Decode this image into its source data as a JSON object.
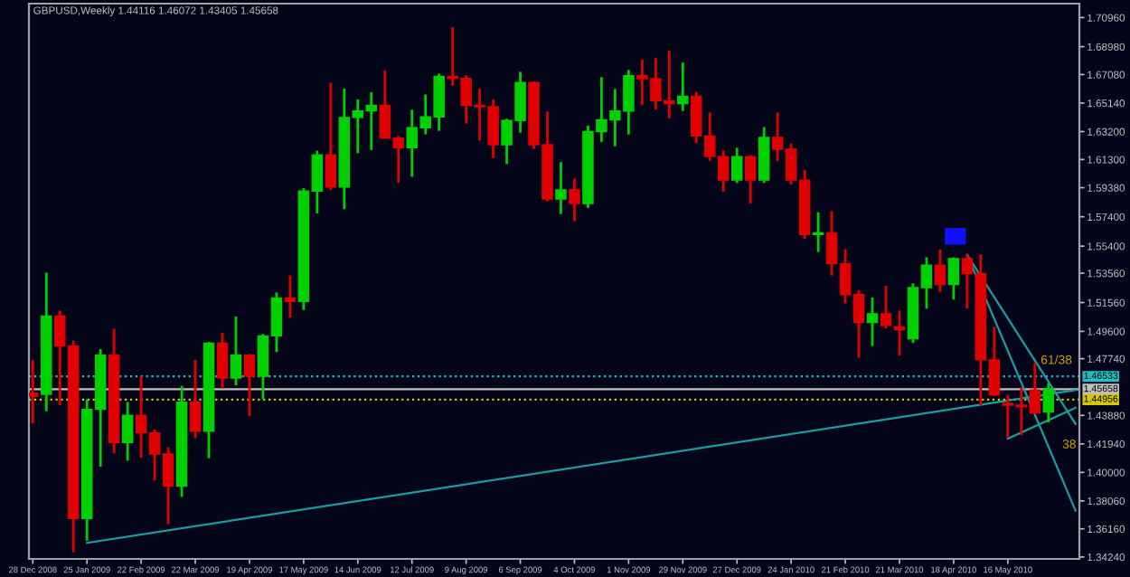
{
  "chart_data": {
    "type": "candlestick",
    "title": "GBPUSD,Weekly 1.44116 1.46072 1.43405 1.45658",
    "x": [
      "2008-12-28",
      "2009-01-04",
      "2009-01-11",
      "2009-01-18",
      "2009-01-25",
      "2009-02-01",
      "2009-02-08",
      "2009-02-15",
      "2009-02-22",
      "2009-03-01",
      "2009-03-08",
      "2009-03-15",
      "2009-03-22",
      "2009-03-29",
      "2009-04-05",
      "2009-04-12",
      "2009-04-19",
      "2009-04-26",
      "2009-05-03",
      "2009-05-10",
      "2009-05-17",
      "2009-05-24",
      "2009-05-31",
      "2009-06-07",
      "2009-06-14",
      "2009-06-21",
      "2009-06-28",
      "2009-07-05",
      "2009-07-12",
      "2009-07-19",
      "2009-07-26",
      "2009-08-02",
      "2009-08-09",
      "2009-08-16",
      "2009-08-23",
      "2009-08-30",
      "2009-09-06",
      "2009-09-13",
      "2009-09-20",
      "2009-09-27",
      "2009-10-04",
      "2009-10-11",
      "2009-10-18",
      "2009-10-25",
      "2009-11-01",
      "2009-11-08",
      "2009-11-15",
      "2009-11-22",
      "2009-11-29",
      "2009-12-06",
      "2009-12-13",
      "2009-12-20",
      "2009-12-27",
      "2010-01-03",
      "2010-01-10",
      "2010-01-17",
      "2010-01-24",
      "2010-01-31",
      "2010-02-07",
      "2010-02-14",
      "2010-02-21",
      "2010-02-28",
      "2010-03-07",
      "2010-03-14",
      "2010-03-21",
      "2010-03-28",
      "2010-04-04",
      "2010-04-11",
      "2010-04-18",
      "2010-04-25",
      "2010-05-02",
      "2010-05-09",
      "2010-05-16",
      "2010-05-23",
      "2010-05-30",
      "2010-06-06"
    ],
    "ohlc": [
      [
        1.454,
        1.4765,
        1.4334,
        1.4519
      ],
      [
        1.4531,
        1.536,
        1.4416,
        1.5065
      ],
      [
        1.5065,
        1.5102,
        1.4457,
        1.486
      ],
      [
        1.486,
        1.4897,
        1.3456,
        1.3686
      ],
      [
        1.3686,
        1.4498,
        1.3534,
        1.4429
      ],
      [
        1.4429,
        1.4839,
        1.4039,
        1.4798
      ],
      [
        1.4798,
        1.4979,
        1.4129,
        1.4203
      ],
      [
        1.4203,
        1.4478,
        1.408,
        1.4388
      ],
      [
        1.4388,
        1.4654,
        1.41,
        1.4269
      ],
      [
        1.4269,
        1.4293,
        1.3944,
        1.4125
      ],
      [
        1.4125,
        1.417,
        1.3649,
        1.3907
      ],
      [
        1.3907,
        1.4589,
        1.3833,
        1.4478
      ],
      [
        1.4478,
        1.4765,
        1.4232,
        1.4281
      ],
      [
        1.4281,
        1.4888,
        1.4096,
        1.488
      ],
      [
        1.488,
        1.495,
        1.4572,
        1.4642
      ],
      [
        1.4642,
        1.5061,
        1.4593,
        1.4798
      ],
      [
        1.4798,
        1.4806,
        1.4384,
        1.4654
      ],
      [
        1.4654,
        1.4942,
        1.4498,
        1.4929
      ],
      [
        1.4929,
        1.5225,
        1.4819,
        1.5188
      ],
      [
        1.5188,
        1.534,
        1.5053,
        1.5163
      ],
      [
        1.5163,
        1.5935,
        1.5106,
        1.5915
      ],
      [
        1.5915,
        1.619,
        1.5763,
        1.6161
      ],
      [
        1.6161,
        1.6654,
        1.5923,
        1.5943
      ],
      [
        1.5943,
        1.6613,
        1.5792,
        1.6416
      ],
      [
        1.6416,
        1.6539,
        1.6173,
        1.6461
      ],
      [
        1.6461,
        1.6588,
        1.6194,
        1.6498
      ],
      [
        1.6498,
        1.6736,
        1.6272,
        1.6276
      ],
      [
        1.6276,
        1.629,
        1.5972,
        1.621
      ],
      [
        1.621,
        1.6469,
        1.6013,
        1.6346
      ],
      [
        1.6346,
        1.6572,
        1.6301,
        1.642
      ],
      [
        1.642,
        1.6715,
        1.6325,
        1.6695
      ],
      [
        1.6695,
        1.7031,
        1.6633,
        1.6682
      ],
      [
        1.6682,
        1.6703,
        1.6374,
        1.6498
      ],
      [
        1.6498,
        1.6613,
        1.6259,
        1.6489
      ],
      [
        1.6489,
        1.6539,
        1.614,
        1.6231
      ],
      [
        1.6231,
        1.6407,
        1.6099,
        1.6395
      ],
      [
        1.6395,
        1.6727,
        1.6313,
        1.6654
      ],
      [
        1.6654,
        1.6662,
        1.6202,
        1.6231
      ],
      [
        1.6231,
        1.6457,
        1.5845,
        1.5861
      ],
      [
        1.5861,
        1.6112,
        1.5759,
        1.5923
      ],
      [
        1.5923,
        1.6,
        1.571,
        1.583
      ],
      [
        1.583,
        1.636,
        1.58,
        1.632
      ],
      [
        1.632,
        1.669,
        1.625,
        1.64
      ],
      [
        1.64,
        1.661,
        1.622,
        1.646
      ],
      [
        1.646,
        1.674,
        1.63,
        1.67
      ],
      [
        1.67,
        1.681,
        1.65,
        1.668
      ],
      [
        1.668,
        1.682,
        1.647,
        1.653
      ],
      [
        1.653,
        1.687,
        1.641,
        1.651
      ],
      [
        1.651,
        1.679,
        1.646,
        1.656
      ],
      [
        1.656,
        1.659,
        1.624,
        1.629
      ],
      [
        1.629,
        1.645,
        1.612,
        1.615
      ],
      [
        1.615,
        1.619,
        1.591,
        1.599
      ],
      [
        1.599,
        1.621,
        1.597,
        1.615
      ],
      [
        1.615,
        1.616,
        1.583,
        1.599
      ],
      [
        1.599,
        1.635,
        1.597,
        1.628
      ],
      [
        1.628,
        1.645,
        1.612,
        1.62
      ],
      [
        1.62,
        1.624,
        1.596,
        1.599
      ],
      [
        1.599,
        1.606,
        1.559,
        1.562
      ],
      [
        1.562,
        1.577,
        1.55,
        1.563
      ],
      [
        1.563,
        1.578,
        1.534,
        1.542
      ],
      [
        1.542,
        1.552,
        1.515,
        1.521
      ],
      [
        1.521,
        1.524,
        1.478,
        1.502
      ],
      [
        1.502,
        1.519,
        1.486,
        1.508
      ],
      [
        1.508,
        1.527,
        1.498,
        1.5
      ],
      [
        1.499,
        1.5102,
        1.4795,
        1.4971
      ],
      [
        1.4909,
        1.5287,
        1.4881,
        1.5258
      ],
      [
        1.5258,
        1.5464,
        1.5115,
        1.541
      ],
      [
        1.541,
        1.5517,
        1.5226,
        1.5279
      ],
      [
        1.5279,
        1.5464,
        1.5176,
        1.5455
      ],
      [
        1.5455,
        1.5484,
        1.5115,
        1.5353
      ],
      [
        1.5353,
        1.5484,
        1.4458,
        1.4766
      ],
      [
        1.4766,
        1.4992,
        1.4519,
        1.4528
      ],
      [
        1.447,
        1.4528,
        1.424,
        1.4458
      ],
      [
        1.4458,
        1.4581,
        1.4253,
        1.4446
      ],
      [
        1.4561,
        1.4745,
        1.4396,
        1.4405
      ],
      [
        1.44116,
        1.46072,
        1.43405,
        1.45658
      ]
    ],
    "colors": [
      "#e00000",
      "#00d000",
      "#e00000",
      "#e00000",
      "#00d000",
      "#00d000",
      "#e00000",
      "#00d000",
      "#e00000",
      "#e00000",
      "#e00000",
      "#00d000",
      "#e00000",
      "#00d000",
      "#e00000",
      "#00d000",
      "#e00000",
      "#00d000",
      "#00d000",
      "#e00000",
      "#00d000",
      "#00d000",
      "#e00000",
      "#00d000",
      "#00d000",
      "#00d000",
      "#e00000",
      "#e00000",
      "#00d000",
      "#00d000",
      "#00d000",
      "#e00000",
      "#e00000",
      "#e00000",
      "#e00000",
      "#00d000",
      "#00d000",
      "#e00000",
      "#e00000",
      "#00d000",
      "#e00000",
      "#00d000",
      "#00d000",
      "#00d000",
      "#00d000",
      "#e00000",
      "#e00000",
      "#e00000",
      "#00d000",
      "#e00000",
      "#e00000",
      "#e00000",
      "#00d000",
      "#e00000",
      "#00d000",
      "#e00000",
      "#e00000",
      "#e00000",
      "#00d000",
      "#e00000",
      "#e00000",
      "#e00000",
      "#00d000",
      "#e00000",
      "#e00000",
      "#00d000",
      "#00d000",
      "#e00000",
      "#00d000",
      "#e00000",
      "#e00000",
      "#e00000",
      "#e00000",
      "#e00000",
      "#e00000",
      "#00d000"
    ],
    "series": [
      {
        "type": "line",
        "color": "#1a9e9e",
        "x": [
          "2009-01-25",
          "2010-06-20"
        ],
        "values": [
          1.352,
          1.456
        ]
      },
      {
        "type": "line",
        "color": "#1a9e9e",
        "x": [
          "2010-04-25",
          "2010-06-20"
        ],
        "values": [
          1.548,
          1.374
        ]
      },
      {
        "type": "line",
        "color": "#1a9e9e",
        "x": [
          "2010-04-25",
          "2010-06-20"
        ],
        "values": [
          1.548,
          1.433
        ]
      },
      {
        "type": "line",
        "color": "#1a9e9e",
        "x": [
          "2010-05-16",
          "2010-06-20"
        ],
        "values": [
          1.423,
          1.444
        ]
      }
    ],
    "ref_lines": [
      {
        "axis": "y",
        "value": 1.46533,
        "label": "1.46533",
        "color": "#20c0c0",
        "line_style": "dotted"
      },
      {
        "axis": "y",
        "value": 1.45658,
        "label": "1.45658",
        "color": "#c0c0c0",
        "line_style": "solid"
      },
      {
        "axis": "y",
        "value": 1.44956,
        "label": "1.44956",
        "color": "#d4c800",
        "line_style": "dotted"
      }
    ],
    "annotations": [
      {
        "text": "61/38",
        "x": "2010-06-02",
        "y": 1.476
      },
      "38"
    ],
    "xlim": [
      "2008-12-26",
      "2010-06-22"
    ],
    "xticks": [
      {
        "value": "2008-12-28",
        "label": "28 Dec 2008"
      },
      {
        "value": "2009-01-25",
        "label": "25 Jan 2009"
      },
      {
        "value": "2009-02-22",
        "label": "22 Feb 2009"
      },
      {
        "value": "2009-03-22",
        "label": "22 Mar 2009"
      },
      {
        "value": "2009-04-19",
        "label": "19 Apr 2009"
      },
      {
        "value": "2009-05-17",
        "label": "17 May 2009"
      },
      {
        "value": "2009-06-14",
        "label": "14 Jun 2009"
      },
      {
        "value": "2009-07-12",
        "label": "12 Jul 2009"
      },
      {
        "value": "2009-08-09",
        "label": "9 Aug 2009"
      },
      {
        "value": "2009-09-06",
        "label": "6 Sep 2009"
      },
      {
        "value": "2009-10-04",
        "label": "4 Oct 2009"
      },
      {
        "value": "2009-11-01",
        "label": "1 Nov 2009"
      },
      {
        "value": "2009-11-29",
        "label": "29 Nov 2009"
      },
      {
        "value": "2009-12-27",
        "label": "27 Dec 2009"
      },
      {
        "value": "2010-01-24",
        "label": "24 Jan 2010"
      },
      {
        "value": "2010-02-21",
        "label": "21 Feb 2010"
      },
      {
        "value": "2010-03-21",
        "label": "21 Mar 2010"
      },
      {
        "value": "2010-04-18",
        "label": "18 Apr 2010"
      },
      {
        "value": "2010-05-16",
        "label": "16 May 2010"
      }
    ],
    "ylim": [
      1.3411,
      1.7191
    ],
    "yticks": [
      {
        "value": 1.7096,
        "label": "1.70960"
      },
      {
        "value": 1.6898,
        "label": "1.68980"
      },
      {
        "value": 1.6708,
        "label": "1.67080"
      },
      {
        "value": 1.6514,
        "label": "1.65140"
      },
      {
        "value": 1.632,
        "label": "1.63200"
      },
      {
        "value": 1.613,
        "label": "1.61300"
      },
      {
        "value": 1.5938,
        "label": "1.59380"
      },
      {
        "value": 1.574,
        "label": "1.57400"
      },
      {
        "value": 1.554,
        "label": "1.55400"
      },
      {
        "value": 1.5356,
        "label": "1.53560"
      },
      {
        "value": 1.5156,
        "label": "1.51560"
      },
      {
        "value": 1.496,
        "label": "1.49600"
      },
      {
        "value": 1.4774,
        "label": "1.47740"
      },
      {
        "value": 1.4388,
        "label": "1.43880"
      },
      {
        "value": 1.4194,
        "label": "1.41940"
      },
      {
        "value": 1.4,
        "label": "1.40000"
      },
      {
        "value": 1.3806,
        "label": "1.38060"
      },
      {
        "value": 1.3616,
        "label": "1.36160"
      },
      {
        "value": 1.3424,
        "label": "1.34240"
      }
    ]
  }
}
